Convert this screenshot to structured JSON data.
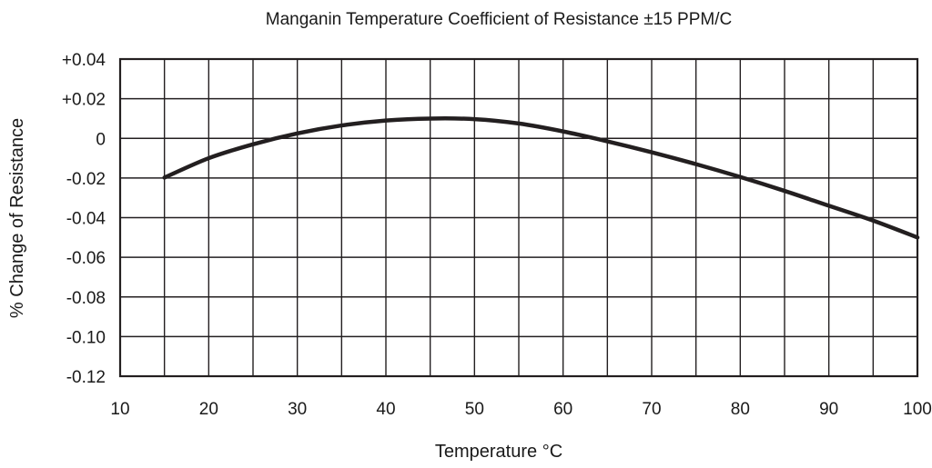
{
  "chart_data": {
    "type": "line",
    "title": "Manganin Temperature Coefficient of Resistance ±15 PPM/C",
    "xlabel": "Temperature °C",
    "ylabel": "% Change of Resistance",
    "xlim": [
      10,
      100
    ],
    "ylim": [
      -0.12,
      0.04
    ],
    "x_ticks": [
      {
        "value": 10,
        "label": "10"
      },
      {
        "value": 20,
        "label": "20"
      },
      {
        "value": 30,
        "label": "30"
      },
      {
        "value": 40,
        "label": "40"
      },
      {
        "value": 50,
        "label": "50"
      },
      {
        "value": 60,
        "label": "60"
      },
      {
        "value": 70,
        "label": "70"
      },
      {
        "value": 80,
        "label": "80"
      },
      {
        "value": 90,
        "label": "90"
      },
      {
        "value": 100,
        "label": "100"
      }
    ],
    "x_grid": [
      10,
      15,
      20,
      25,
      30,
      35,
      40,
      45,
      50,
      55,
      60,
      65,
      70,
      75,
      80,
      85,
      90,
      95,
      100
    ],
    "y_ticks": [
      {
        "value": 0.04,
        "label": "+0.04"
      },
      {
        "value": 0.02,
        "label": "+0.02"
      },
      {
        "value": 0,
        "label": "0"
      },
      {
        "value": -0.02,
        "label": "-0.02"
      },
      {
        "value": -0.04,
        "label": "-0.04"
      },
      {
        "value": -0.06,
        "label": "-0.06"
      },
      {
        "value": -0.08,
        "label": "-0.08"
      },
      {
        "value": -0.1,
        "label": "-0.10"
      },
      {
        "value": -0.12,
        "label": "-0.12"
      }
    ],
    "grid": true,
    "series": [
      {
        "x": [
          15,
          20,
          25,
          30,
          35,
          40,
          45,
          50,
          55,
          60,
          65,
          70,
          75,
          80,
          85,
          90,
          95,
          100
        ],
        "y": [
          -0.0198,
          -0.01,
          -0.003,
          0.0025,
          0.0065,
          0.009,
          0.01,
          0.0097,
          0.0075,
          0.0035,
          -0.0015,
          -0.007,
          -0.013,
          -0.0195,
          -0.0265,
          -0.034,
          -0.0415,
          -0.05
        ]
      }
    ],
    "colors": {
      "line": "#231f20",
      "grid": "#231f20",
      "text": "#1a1a1a"
    }
  }
}
